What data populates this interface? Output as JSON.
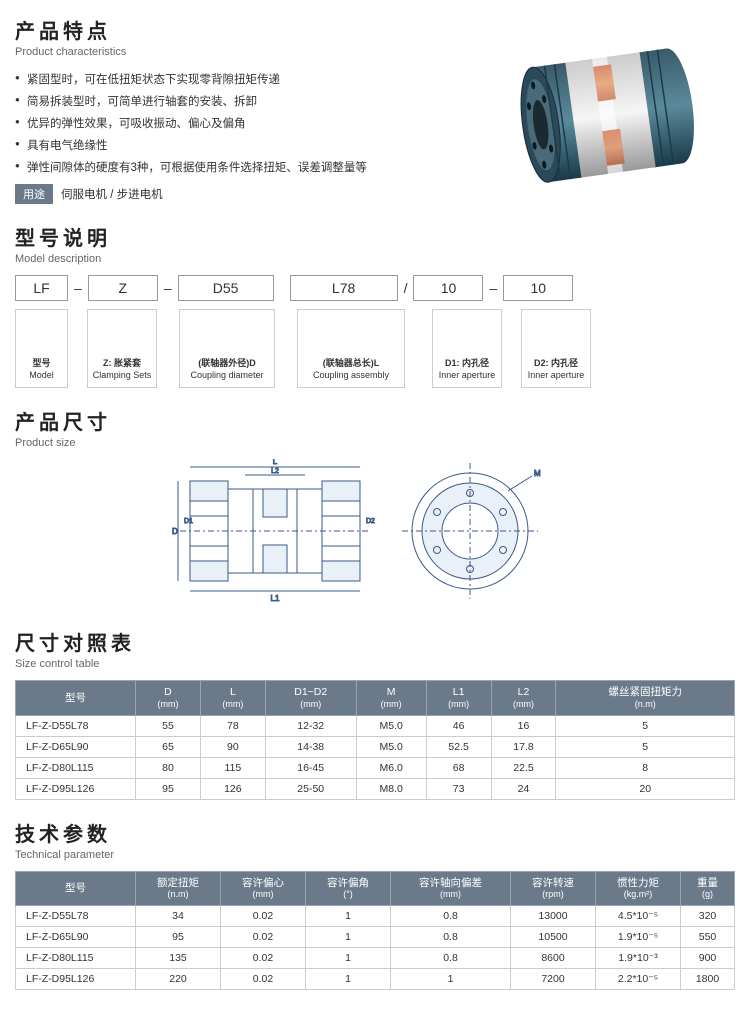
{
  "features": {
    "title_zh": "产品特点",
    "title_en": "Product characteristics",
    "items": [
      "紧固型时，可在低扭矩状态下实现零背隙扭矩传递",
      "简易拆装型时，可简单进行轴套的安装、拆卸",
      "优异的弹性效果，可吸收振动、偏心及偏角",
      "具有电气绝缘性",
      "弹性间隙体的硬度有3种，可根据使用条件选择扭矩、误差调整量等"
    ],
    "usage_label": "用途",
    "usage_text": " 伺服电机 / 步进电机"
  },
  "model_desc": {
    "title_zh": "型号说明",
    "title_en": "Model description",
    "parts": [
      "LF",
      "Z",
      "D55",
      "L78",
      "10",
      "10"
    ],
    "seps": [
      "–",
      "–",
      "",
      "/",
      "–"
    ],
    "descs": [
      {
        "zh": "型号",
        "en": "Model"
      },
      {
        "zh": "Z: 胀紧套",
        "en": "Clamping Sets"
      },
      {
        "zh": "(联轴器外径)D",
        "en": "Coupling diameter"
      },
      {
        "zh": "(联轴器总长)L",
        "en": "Coupling assembly"
      },
      {
        "zh": "D1: 内孔径",
        "en": "Inner aperture"
      },
      {
        "zh": "D2: 内孔径",
        "en": "Inner aperture"
      }
    ]
  },
  "product_size": {
    "title_zh": "产品尺寸",
    "title_en": "Product size"
  },
  "size_table": {
    "title_zh": "尺寸对照表",
    "title_en": "Size control table",
    "headers": [
      {
        "t": "型号",
        "u": ""
      },
      {
        "t": "D",
        "u": "(mm)"
      },
      {
        "t": "L",
        "u": "(mm)"
      },
      {
        "t": "D1~D2",
        "u": "(mm)"
      },
      {
        "t": "M",
        "u": "(mm)"
      },
      {
        "t": "L1",
        "u": "(mm)"
      },
      {
        "t": "L2",
        "u": "(mm)"
      },
      {
        "t": "螺丝紧固扭矩力",
        "u": "(n.m)"
      }
    ],
    "rows": [
      [
        "LF-Z-D55L78",
        "55",
        "78",
        "12-32",
        "M5.0",
        "46",
        "16",
        "5"
      ],
      [
        "LF-Z-D65L90",
        "65",
        "90",
        "14-38",
        "M5.0",
        "52.5",
        "17.8",
        "5"
      ],
      [
        "LF-Z-D80L115",
        "80",
        "115",
        "16-45",
        "M6.0",
        "68",
        "22.5",
        "8"
      ],
      [
        "LF-Z-D95L126",
        "95",
        "126",
        "25-50",
        "M8.0",
        "73",
        "24",
        "20"
      ]
    ]
  },
  "tech_table": {
    "title_zh": "技术参数",
    "title_en": "Technical parameter",
    "headers": [
      {
        "t": "型号",
        "u": ""
      },
      {
        "t": "额定扭矩",
        "u": "(n.m)"
      },
      {
        "t": "容许偏心",
        "u": "(mm)"
      },
      {
        "t": "容许偏角",
        "u": "(°)"
      },
      {
        "t": "容许轴向偏差",
        "u": "(mm)"
      },
      {
        "t": "容许转速",
        "u": "(rpm)"
      },
      {
        "t": "惯性力矩",
        "u": "(kg.m²)"
      },
      {
        "t": "重量",
        "u": "(g)"
      }
    ],
    "rows": [
      [
        "LF-Z-D55L78",
        "34",
        "0.02",
        "1",
        "0.8",
        "13000",
        "4.5*10⁻⁵",
        "320"
      ],
      [
        "LF-Z-D65L90",
        "95",
        "0.02",
        "1",
        "0.8",
        "10500",
        "1.9*10⁻⁵",
        "550"
      ],
      [
        "LF-Z-D80L115",
        "135",
        "0.02",
        "1",
        "0.8",
        "8600",
        "1.9*10⁻³",
        "900"
      ],
      [
        "LF-Z-D95L126",
        "220",
        "0.02",
        "1",
        "1",
        "7200",
        "2.2*10⁻⁵",
        "1800"
      ]
    ]
  },
  "colors": {
    "header_bg": "#6b7a8a",
    "border": "#ccc"
  }
}
